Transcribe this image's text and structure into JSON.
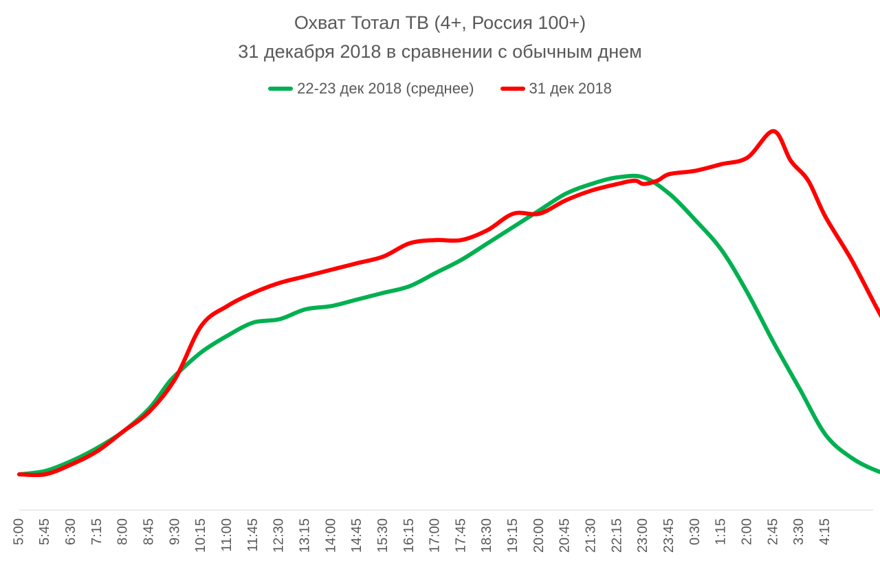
{
  "chart_data": {
    "type": "line",
    "title": "Охват Тотал ТВ (4+, Россия 100+)",
    "subtitle": "31 декабря 2018 в сравнении с обычным днем",
    "xlabel": "",
    "ylabel": "",
    "legend_position": "top",
    "grid": false,
    "x_ticks": [
      "5:00",
      "5:45",
      "6:30",
      "7:15",
      "8:00",
      "8:45",
      "9:30",
      "10:15",
      "11:00",
      "11:45",
      "12:30",
      "13:15",
      "14:00",
      "14:45",
      "15:30",
      "16:15",
      "17:00",
      "17:45",
      "18:30",
      "19:15",
      "20:00",
      "20:45",
      "21:30",
      "22:15",
      "23:00",
      "23:45",
      "0:30",
      "1:15",
      "2:00",
      "2:45",
      "3:30",
      "4:15"
    ],
    "x_range_hours": [
      0,
      23.75
    ],
    "ylim": [
      0,
      100
    ],
    "series": [
      {
        "name": "22-23 дек 2018 (среднее)",
        "color": "#00b050",
        "points": [
          [
            0,
            0
          ],
          [
            0.75,
            1
          ],
          [
            1.5,
            4
          ],
          [
            2.25,
            8
          ],
          [
            3,
            13
          ],
          [
            3.75,
            20
          ],
          [
            4.25,
            27
          ],
          [
            4.5,
            30
          ],
          [
            5.25,
            37
          ],
          [
            6,
            42
          ],
          [
            6.75,
            46
          ],
          [
            7.5,
            47
          ],
          [
            8.25,
            50
          ],
          [
            9,
            51
          ],
          [
            9.75,
            53
          ],
          [
            10.5,
            55
          ],
          [
            11.25,
            57
          ],
          [
            12,
            61
          ],
          [
            12.75,
            65
          ],
          [
            13.5,
            70
          ],
          [
            14.25,
            75
          ],
          [
            15,
            80
          ],
          [
            15.75,
            85
          ],
          [
            16.5,
            88
          ],
          [
            17.25,
            90
          ],
          [
            18,
            90
          ],
          [
            18.75,
            85
          ],
          [
            19.5,
            77
          ],
          [
            20.25,
            68
          ],
          [
            21,
            55
          ],
          [
            21.75,
            40
          ],
          [
            22.5,
            26
          ],
          [
            23.25,
            12
          ],
          [
            24,
            5
          ],
          [
            24.75,
            1
          ],
          [
            25.5,
            -1
          ],
          [
            26.25,
            -2
          ],
          [
            26.75,
            -1
          ]
        ]
      },
      {
        "name": "31 дек 2018",
        "color": "#ff0000",
        "points": [
          [
            0,
            0
          ],
          [
            0.75,
            0
          ],
          [
            1.5,
            3
          ],
          [
            2.25,
            7
          ],
          [
            3,
            13
          ],
          [
            3.75,
            19
          ],
          [
            4.5,
            29
          ],
          [
            5.25,
            45
          ],
          [
            6,
            51
          ],
          [
            6.75,
            55
          ],
          [
            7.5,
            58
          ],
          [
            8.25,
            60
          ],
          [
            9,
            62
          ],
          [
            9.75,
            64
          ],
          [
            10.5,
            66
          ],
          [
            11.25,
            70
          ],
          [
            12,
            71
          ],
          [
            12.75,
            71
          ],
          [
            13.5,
            74
          ],
          [
            14.25,
            79
          ],
          [
            15,
            79
          ],
          [
            15.75,
            83
          ],
          [
            16.5,
            86
          ],
          [
            17.25,
            88
          ],
          [
            17.75,
            89
          ],
          [
            18,
            88
          ],
          [
            18.4,
            89
          ],
          [
            18.75,
            91
          ],
          [
            19.5,
            92
          ],
          [
            20.25,
            94
          ],
          [
            21,
            96
          ],
          [
            21.75,
            104
          ],
          [
            22.25,
            95
          ],
          [
            22.75,
            89
          ],
          [
            23.25,
            78
          ],
          [
            24,
            65
          ],
          [
            24.75,
            50
          ],
          [
            25.5,
            36
          ],
          [
            26.25,
            24
          ],
          [
            26.75,
            15
          ]
        ]
      }
    ]
  }
}
